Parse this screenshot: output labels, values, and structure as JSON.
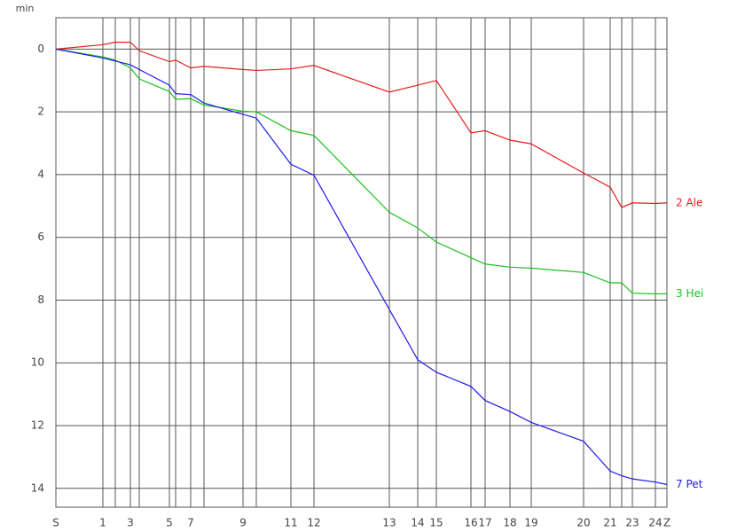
{
  "chart_data": {
    "type": "line",
    "y_label": "min",
    "x": [
      0,
      53,
      67,
      84,
      94,
      128,
      135,
      152,
      167,
      211,
      226,
      265,
      291,
      376,
      408,
      429,
      468,
      484,
      512,
      536,
      595,
      625,
      638,
      650,
      676,
      689
    ],
    "categories": [
      "S",
      "1",
      null,
      "3",
      null,
      "5",
      null,
      "7",
      null,
      "9",
      null,
      "11",
      "12",
      "13",
      "14",
      "15",
      "16",
      "17",
      "18",
      "19",
      "20",
      "21",
      null,
      "23",
      "24",
      "Z"
    ],
    "xlim": [
      0,
      689
    ],
    "ylim": [
      -1,
      14.6
    ],
    "y_inverted": true,
    "yticks": [
      0,
      2,
      4,
      6,
      8,
      10,
      12,
      14
    ],
    "grid": true,
    "series": [
      {
        "name": "2 Ale",
        "color": "#e81c1c",
        "values": [
          0,
          -0.14,
          -0.22,
          -0.22,
          0.05,
          0.4,
          0.35,
          0.6,
          0.55,
          0.65,
          0.68,
          0.63,
          0.52,
          1.37,
          1.15,
          1.0,
          2.67,
          2.6,
          2.9,
          3.02,
          3.95,
          4.4,
          5.05,
          4.9,
          4.92,
          4.9
        ]
      },
      {
        "name": "3 Hei",
        "color": "#1cc21c",
        "values": [
          0,
          0.25,
          0.35,
          0.6,
          0.95,
          1.35,
          1.6,
          1.58,
          1.78,
          1.98,
          2.0,
          2.6,
          2.75,
          5.2,
          5.7,
          6.15,
          6.65,
          6.85,
          6.95,
          6.98,
          7.12,
          7.45,
          7.45,
          7.78,
          7.8,
          7.8
        ]
      },
      {
        "name": "7 Pet",
        "color": "#1c1ce8",
        "values": [
          0,
          0.28,
          0.38,
          0.5,
          0.65,
          1.15,
          1.42,
          1.45,
          1.72,
          2.08,
          2.2,
          3.67,
          4.02,
          8.3,
          9.9,
          10.3,
          10.75,
          11.2,
          11.55,
          11.9,
          12.5,
          13.45,
          13.6,
          13.7,
          13.8,
          13.88
        ]
      }
    ]
  }
}
